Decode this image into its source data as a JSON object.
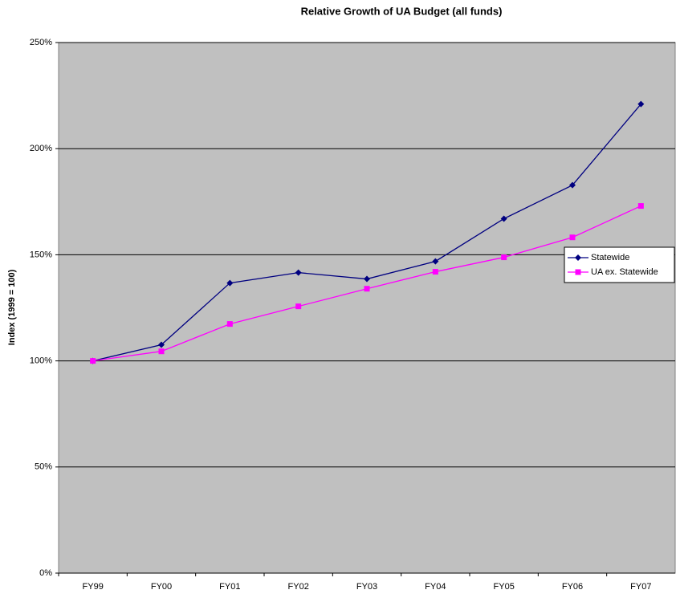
{
  "chart_data": {
    "type": "line",
    "title": "Relative Growth of UA Budget (all funds)",
    "y_label": "Index (1999 = 100)",
    "categories": [
      "FY99",
      "FY00",
      "FY01",
      "FY02",
      "FY03",
      "FY04",
      "FY05",
      "FY06",
      "FY07"
    ],
    "series": [
      {
        "name": "Statewide",
        "color": "#000080",
        "marker": "diamond",
        "values": [
          100,
          107.6,
          136.7,
          141.6,
          138.6,
          146.9,
          167,
          182.8,
          221
        ]
      },
      {
        "name": "UA ex. Statewide",
        "color": "#ff00ff",
        "marker": "square",
        "values": [
          100,
          104.5,
          117.4,
          125.7,
          134,
          142,
          148.8,
          158.2,
          173
        ]
      }
    ],
    "ylim": [
      0,
      250
    ],
    "yticks": [
      {
        "value": 0,
        "label": "0%"
      },
      {
        "value": 50,
        "label": "50%"
      },
      {
        "value": 100,
        "label": "100%"
      },
      {
        "value": 150,
        "label": "150%"
      },
      {
        "value": 200,
        "label": "200%"
      },
      {
        "value": 250,
        "label": "250%"
      }
    ],
    "grid": true,
    "legend": "right",
    "plot_background": "#c0c0c0"
  }
}
